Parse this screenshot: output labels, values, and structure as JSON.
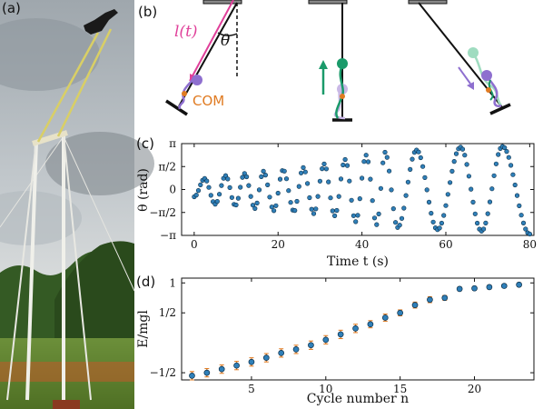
{
  "panel_labels": {
    "a": "(a)",
    "b": "(b)",
    "c": "(c)",
    "d": "(d)"
  },
  "schematic": {
    "length_label": "l(t)",
    "angle_label": "θ",
    "com_label": "COM",
    "colors": {
      "rope": "#111111",
      "length": "#e0409a",
      "com": "#e07b22",
      "body_1": "#8e6fcf",
      "body_2": "#1a9a6a",
      "arrow_up": "#1a9a6a",
      "arrow_down": "#8e6fcf",
      "ghost": "#c9b8e6",
      "ghost_green": "#9fdcc0"
    }
  },
  "chart_data": [
    {
      "panel": "(c)",
      "type": "scatter",
      "xlabel": "Time t (s)",
      "ylabel": "θ (rad)",
      "xlim": [
        -3,
        81
      ],
      "ylim": [
        -3.1416,
        3.1416
      ],
      "xticks": [
        0,
        20,
        40,
        60,
        80
      ],
      "xtick_labels": [
        "0",
        "20",
        "40",
        "60",
        "80"
      ],
      "yticks": [
        -3.1416,
        -1.5708,
        0,
        1.5708,
        3.1416
      ],
      "ytick_labels": [
        "−π",
        "−π/2",
        "0",
        "π/2",
        "π"
      ],
      "oscillation": {
        "t_start": 0,
        "t_end": 80,
        "dt": 0.5,
        "peaks": [
          [
            2.5,
            0.75
          ],
          [
            7.5,
            0.95
          ],
          [
            12.0,
            1.1
          ],
          [
            16.5,
            1.25
          ],
          [
            21.2,
            1.35
          ],
          [
            26.0,
            1.5
          ],
          [
            31.0,
            1.75
          ],
          [
            36.0,
            2.05
          ],
          [
            41.0,
            2.35
          ],
          [
            45.5,
            2.55
          ],
          [
            53.0,
            2.7
          ],
          [
            63.5,
            2.9
          ],
          [
            73.5,
            2.95
          ]
        ],
        "troughs": [
          [
            0,
            -0.5
          ],
          [
            5.0,
            -1.0
          ],
          [
            9.8,
            -1.1
          ],
          [
            14.5,
            -1.3
          ],
          [
            19.0,
            -1.45
          ],
          [
            23.8,
            -1.5
          ],
          [
            28.5,
            -1.65
          ],
          [
            33.5,
            -1.8
          ],
          [
            38.5,
            -2.2
          ],
          [
            43.5,
            -2.4
          ],
          [
            48.5,
            -2.6
          ],
          [
            58.0,
            -2.75
          ],
          [
            68.5,
            -2.85
          ],
          [
            80.0,
            -3.05
          ]
        ]
      },
      "marker_color": "#2f7fb8"
    },
    {
      "panel": "(d)",
      "type": "scatter",
      "xlabel": "Cycle number n",
      "ylabel": "E/mgl",
      "xlim": [
        0.3,
        24
      ],
      "ylim": [
        -0.62,
        1.08
      ],
      "xticks": [
        5,
        10,
        15,
        20
      ],
      "xtick_labels": [
        "5",
        "10",
        "15",
        "20"
      ],
      "yticks": [
        -0.5,
        0.5,
        1
      ],
      "ytick_labels": [
        "−1/2",
        "1/2",
        "1"
      ],
      "x": [
        1,
        2,
        3,
        4,
        5,
        6,
        7,
        8,
        9,
        10,
        11,
        12,
        13,
        14,
        15,
        16,
        17,
        18,
        19,
        20,
        21,
        22,
        23
      ],
      "values": [
        -0.55,
        -0.5,
        -0.44,
        -0.38,
        -0.32,
        -0.25,
        -0.17,
        -0.11,
        -0.04,
        0.05,
        0.14,
        0.24,
        0.31,
        0.42,
        0.5,
        0.63,
        0.72,
        0.75,
        0.9,
        0.91,
        0.93,
        0.95,
        0.97
      ],
      "errors": [
        0.07,
        0.07,
        0.07,
        0.07,
        0.07,
        0.07,
        0.07,
        0.07,
        0.07,
        0.07,
        0.07,
        0.07,
        0.06,
        0.06,
        0.05,
        0.05,
        0.05,
        0.04,
        0.03,
        0.03,
        0.03,
        0.03,
        0.03
      ],
      "marker_color": "#2f7fb8"
    }
  ]
}
